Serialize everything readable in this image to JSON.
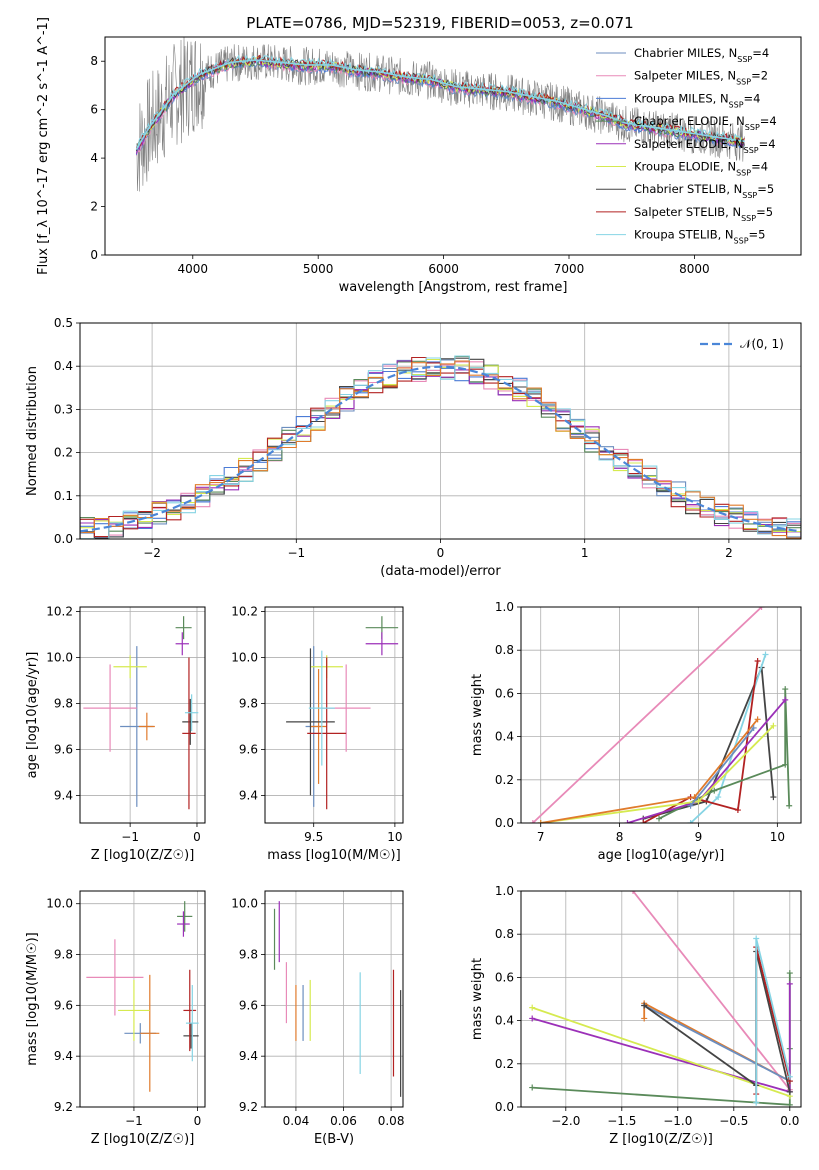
{
  "figure": {
    "title": "PLATE=0786, MJD=52319, FIBERID=0053, z=0.071"
  },
  "series_colors": [
    "#6c8ebf",
    "#e88ab8",
    "#4c7cd6",
    "#5a8a5a",
    "#9b30b8",
    "#d6ea50",
    "#444444",
    "#b22222",
    "#86d4e4",
    "#e07b2c"
  ],
  "chart_data": [
    {
      "id": "spectrum",
      "type": "line",
      "title": "PLATE=0786, MJD=52319, FIBERID=0053, z=0.071",
      "xlabel": "wavelength [Angstrom, rest frame]",
      "ylabel": "Flux [f_λ 10^-17 erg cm^-2 s^-1 A^-1]",
      "xlim": [
        3300,
        8850
      ],
      "ylim": [
        0,
        9
      ],
      "xticks": [
        4000,
        5000,
        6000,
        7000,
        8000
      ],
      "yticks": [
        0,
        2,
        4,
        6,
        8
      ],
      "grid": false,
      "legend_position": "right",
      "legend": [
        {
          "model": "Chabrier MILES",
          "nssp": "4",
          "color": "#6c8ebf"
        },
        {
          "model": "Salpeter MILES",
          "nssp": "2",
          "color": "#e88ab8"
        },
        {
          "model": "Kroupa MILES",
          "nssp": "4",
          "color": "#4c7cd6"
        },
        {
          "model": "Chabrier ELODIE",
          "nssp": "4",
          "color": "#5a8a5a"
        },
        {
          "model": "Salpeter ELODIE",
          "nssp": "4",
          "color": "#9b30b8"
        },
        {
          "model": "Kroupa ELODIE",
          "nssp": "4",
          "color": "#d6ea50"
        },
        {
          "model": "Chabrier STELIB",
          "nssp": "5",
          "color": "#444444"
        },
        {
          "model": "Salpeter STELIB",
          "nssp": "5",
          "color": "#b22222"
        },
        {
          "model": "Kroupa STELIB",
          "nssp": "5",
          "color": "#86d4e4"
        }
      ],
      "model_curve": {
        "x": [
          3550,
          3650,
          3750,
          3850,
          3950,
          4050,
          4150,
          4300,
          4500,
          4700,
          4900,
          5100,
          5300,
          5500,
          5700,
          5900,
          6100,
          6300,
          6500,
          6700,
          6900,
          7100,
          7300,
          7450
        ],
        "y": [
          4.3,
          5.2,
          5.9,
          6.6,
          7.0,
          7.4,
          7.6,
          7.9,
          8.0,
          7.9,
          7.8,
          7.8,
          7.6,
          7.5,
          7.3,
          7.2,
          6.9,
          6.8,
          6.7,
          6.5,
          6.3,
          6.0,
          5.7,
          5.4
        ]
      },
      "data_range": [
        3550,
        8400
      ]
    },
    {
      "id": "residuals",
      "type": "line",
      "xlabel": "(data-model)/error",
      "ylabel": "Normed distribution",
      "xlim": [
        -2.5,
        2.5
      ],
      "ylim": [
        0,
        0.5
      ],
      "xticks": [
        -2,
        -1,
        0,
        1,
        2
      ],
      "xticklabels": [
        "−2",
        "−1",
        "0",
        "1",
        "2"
      ],
      "yticks": [
        0.0,
        0.1,
        0.2,
        0.3,
        0.4,
        0.5
      ],
      "grid": true,
      "legend_position": "top-right",
      "legend": [
        {
          "label": "𝒩(0, 1)",
          "color": "#4a86d8",
          "style": "dashed"
        }
      ]
    },
    {
      "id": "age_vs_Z",
      "type": "scatter",
      "xlabel": "Z [log10(Z/Z☉)]",
      "ylabel": "age [log10(age/yr)]",
      "xlim": [
        -1.75,
        0.12
      ],
      "ylim": [
        9.28,
        10.22
      ],
      "xticks": [
        -1,
        0
      ],
      "xticklabels": [
        "−1",
        "0"
      ],
      "yticks": [
        9.4,
        9.6,
        9.8,
        10.0,
        10.2
      ],
      "grid": true,
      "points": [
        {
          "x": -0.9,
          "y": 9.7,
          "xerr": 0.25,
          "yerr": 0.35,
          "color": "#6c8ebf"
        },
        {
          "x": -1.3,
          "y": 9.78,
          "xerr": 0.4,
          "yerr": 0.19,
          "color": "#e88ab8"
        },
        {
          "x": -0.75,
          "y": 9.7,
          "xerr": 0.12,
          "yerr": 0.06,
          "color": "#e07b2c"
        },
        {
          "x": -0.2,
          "y": 10.13,
          "xerr": 0.12,
          "yerr": 0.05,
          "color": "#5a8a5a"
        },
        {
          "x": -0.22,
          "y": 10.06,
          "xerr": 0.1,
          "yerr": 0.05,
          "color": "#9b30b8"
        },
        {
          "x": -1.0,
          "y": 9.96,
          "xerr": 0.25,
          "yerr": 0.05,
          "color": "#d6ea50"
        },
        {
          "x": -0.1,
          "y": 9.72,
          "xerr": 0.12,
          "yerr": 0.1,
          "color": "#444444"
        },
        {
          "x": -0.12,
          "y": 9.67,
          "xerr": 0.1,
          "yerr": 0.33,
          "color": "#b22222"
        },
        {
          "x": -0.08,
          "y": 9.76,
          "xerr": 0.1,
          "yerr": 0.08,
          "color": "#86d4e4"
        }
      ]
    },
    {
      "id": "age_vs_mass",
      "type": "scatter",
      "xlabel": "mass [log10(M/M☉)]",
      "xlim": [
        9.2,
        10.05
      ],
      "ylim": [
        9.28,
        10.22
      ],
      "xticks": [
        9.5,
        10.0
      ],
      "yticks": [
        9.4,
        9.6,
        9.8,
        10.0,
        10.2
      ],
      "grid": true,
      "points": [
        {
          "x": 9.5,
          "y": 9.7,
          "xerr": 0.05,
          "yerr": 0.35,
          "color": "#6c8ebf"
        },
        {
          "x": 9.7,
          "y": 9.78,
          "xerr": 0.15,
          "yerr": 0.19,
          "color": "#e88ab8"
        },
        {
          "x": 9.53,
          "y": 9.7,
          "xerr": 0.05,
          "yerr": 0.25,
          "color": "#e07b2c"
        },
        {
          "x": 9.92,
          "y": 10.13,
          "xerr": 0.1,
          "yerr": 0.05,
          "color": "#5a8a5a"
        },
        {
          "x": 9.92,
          "y": 10.06,
          "xerr": 0.1,
          "yerr": 0.05,
          "color": "#9b30b8"
        },
        {
          "x": 9.58,
          "y": 9.96,
          "xerr": 0.1,
          "yerr": 0.05,
          "color": "#d6ea50"
        },
        {
          "x": 9.48,
          "y": 9.72,
          "xerr": 0.15,
          "yerr": 0.32,
          "color": "#444444"
        },
        {
          "x": 9.58,
          "y": 9.67,
          "xerr": 0.12,
          "yerr": 0.33,
          "color": "#b22222"
        },
        {
          "x": 9.55,
          "y": 9.78,
          "xerr": 0.08,
          "yerr": 0.25,
          "color": "#86d4e4"
        }
      ]
    },
    {
      "id": "massweight_vs_age",
      "type": "line",
      "xlabel": "age [log10(age/yr)]",
      "ylabel": "mass weight",
      "xlim": [
        6.75,
        10.3
      ],
      "ylim": [
        0,
        1.0
      ],
      "xticks": [
        7,
        8,
        9,
        10
      ],
      "yticks": [
        0.0,
        0.2,
        0.4,
        0.6,
        0.8,
        1.0
      ],
      "grid": true,
      "series": [
        {
          "color": "#e88ab8",
          "x": [
            6.9,
            9.8
          ],
          "y": [
            0.0,
            1.0
          ]
        },
        {
          "color": "#444444",
          "x": [
            8.3,
            9.1,
            9.8,
            9.95
          ],
          "y": [
            0.02,
            0.1,
            0.72,
            0.12
          ]
        },
        {
          "color": "#86d4e4",
          "x": [
            8.9,
            9.25,
            9.85
          ],
          "y": [
            0.0,
            0.12,
            0.78
          ]
        },
        {
          "color": "#b22222",
          "x": [
            8.3,
            8.9,
            9.5,
            9.75
          ],
          "y": [
            0.0,
            0.12,
            0.06,
            0.75
          ]
        },
        {
          "color": "#5a8a5a",
          "x": [
            8.5,
            9.2,
            10.1,
            10.1,
            10.15
          ],
          "y": [
            0.02,
            0.15,
            0.27,
            0.62,
            0.08
          ]
        },
        {
          "color": "#9b30b8",
          "x": [
            8.1,
            9.0,
            10.1
          ],
          "y": [
            0.0,
            0.1,
            0.57
          ]
        },
        {
          "color": "#d6ea50",
          "x": [
            7.0,
            9.0,
            9.95
          ],
          "y": [
            0.0,
            0.1,
            0.45
          ]
        },
        {
          "color": "#e07b2c",
          "x": [
            7.0,
            8.95,
            9.75
          ],
          "y": [
            0.0,
            0.12,
            0.48
          ]
        },
        {
          "color": "#6c8ebf",
          "x": [
            8.9,
            9.7
          ],
          "y": [
            0.08,
            0.44
          ]
        }
      ]
    },
    {
      "id": "mass_vs_Z",
      "type": "scatter",
      "xlabel": "Z [log10(Z/Z☉)]",
      "ylabel": "mass [log10(M/M☉)]",
      "xlim": [
        -1.85,
        0.12
      ],
      "ylim": [
        9.2,
        10.05
      ],
      "xticks": [
        -1,
        0
      ],
      "xticklabels": [
        "−1",
        "0"
      ],
      "yticks": [
        9.2,
        9.4,
        9.6,
        9.8,
        10.0
      ],
      "grid": true,
      "points": [
        {
          "x": -0.9,
          "y": 9.49,
          "xerr": 0.25,
          "yerr": 0.04,
          "color": "#6c8ebf"
        },
        {
          "x": -1.3,
          "y": 9.71,
          "xerr": 0.45,
          "yerr": 0.15,
          "color": "#e88ab8"
        },
        {
          "x": -0.75,
          "y": 9.49,
          "xerr": 0.15,
          "yerr": 0.23,
          "color": "#e07b2c"
        },
        {
          "x": -0.2,
          "y": 9.95,
          "xerr": 0.12,
          "yerr": 0.06,
          "color": "#5a8a5a"
        },
        {
          "x": -0.22,
          "y": 9.92,
          "xerr": 0.1,
          "yerr": 0.05,
          "color": "#9b30b8"
        },
        {
          "x": -1.0,
          "y": 9.58,
          "xerr": 0.25,
          "yerr": 0.12,
          "color": "#d6ea50"
        },
        {
          "x": -0.1,
          "y": 9.48,
          "xerr": 0.12,
          "yerr": 0.05,
          "color": "#444444"
        },
        {
          "x": -0.12,
          "y": 9.58,
          "xerr": 0.1,
          "yerr": 0.16,
          "color": "#b22222"
        },
        {
          "x": -0.08,
          "y": 9.53,
          "xerr": 0.1,
          "yerr": 0.15,
          "color": "#86d4e4"
        }
      ]
    },
    {
      "id": "mass_vs_EBV",
      "type": "scatter",
      "xlabel": "E(B-V)",
      "xlim": [
        0.027,
        0.085
      ],
      "ylim": [
        9.2,
        10.05
      ],
      "xticks": [
        0.04,
        0.06,
        0.08
      ],
      "yticks": [
        9.2,
        9.4,
        9.6,
        9.8,
        10.0
      ],
      "grid": true,
      "points": [
        {
          "x": 0.043,
          "y": 9.57,
          "yerr": 0.11,
          "color": "#6c8ebf"
        },
        {
          "x": 0.036,
          "y": 9.65,
          "yerr": 0.12,
          "color": "#e88ab8"
        },
        {
          "x": 0.04,
          "y": 9.57,
          "yerr": 0.11,
          "color": "#e07b2c"
        },
        {
          "x": 0.031,
          "y": 9.86,
          "yerr": 0.12,
          "color": "#5a8a5a"
        },
        {
          "x": 0.033,
          "y": 9.89,
          "yerr": 0.12,
          "color": "#9b30b8"
        },
        {
          "x": 0.046,
          "y": 9.58,
          "yerr": 0.12,
          "color": "#d6ea50"
        },
        {
          "x": 0.084,
          "y": 9.45,
          "yerr": 0.21,
          "color": "#444444"
        },
        {
          "x": 0.081,
          "y": 9.53,
          "yerr": 0.21,
          "color": "#b22222"
        },
        {
          "x": 0.067,
          "y": 9.53,
          "yerr": 0.2,
          "color": "#86d4e4"
        }
      ]
    },
    {
      "id": "massweight_vs_Z",
      "type": "line",
      "xlabel": "Z [log10(Z/Z☉)]",
      "ylabel": "mass weight",
      "xlim": [
        -2.4,
        0.1
      ],
      "ylim": [
        0,
        1.0
      ],
      "xticks": [
        -2.0,
        -1.5,
        -1.0,
        -0.5,
        0.0
      ],
      "xticklabels": [
        "−2.0",
        "−1.5",
        "−1.0",
        "−0.5",
        "0.0"
      ],
      "yticks": [
        0.0,
        0.2,
        0.4,
        0.6,
        0.8,
        1.0
      ],
      "grid": true,
      "series": [
        {
          "color": "#e88ab8",
          "x": [
            -1.4,
            0.0
          ],
          "y": [
            1.0,
            0.08
          ]
        },
        {
          "color": "#5a8a5a",
          "x": [
            -2.3,
            0.0,
            0.0,
            0.0
          ],
          "y": [
            0.09,
            0.01,
            0.27,
            0.62
          ]
        },
        {
          "color": "#9b30b8",
          "x": [
            -2.3,
            0.0,
            0.0
          ],
          "y": [
            0.41,
            0.07,
            0.57
          ]
        },
        {
          "color": "#d6ea50",
          "x": [
            -2.3,
            0.0
          ],
          "y": [
            0.46,
            0.05
          ]
        },
        {
          "color": "#e07b2c",
          "x": [
            -1.3,
            -1.3,
            0.0
          ],
          "y": [
            0.41,
            0.48,
            0.12
          ]
        },
        {
          "color": "#6c8ebf",
          "x": [
            -1.3,
            0.0
          ],
          "y": [
            0.47,
            0.12
          ]
        },
        {
          "color": "#444444",
          "x": [
            -1.3,
            -0.3,
            -0.3,
            0.0
          ],
          "y": [
            0.47,
            0.1,
            0.72,
            0.07
          ]
        },
        {
          "color": "#b22222",
          "x": [
            -0.3,
            -0.3,
            0.0
          ],
          "y": [
            0.06,
            0.74,
            0.12
          ]
        },
        {
          "color": "#86d4e4",
          "x": [
            -0.3,
            -0.3,
            0.0
          ],
          "y": [
            0.02,
            0.78,
            0.14
          ]
        }
      ]
    }
  ]
}
